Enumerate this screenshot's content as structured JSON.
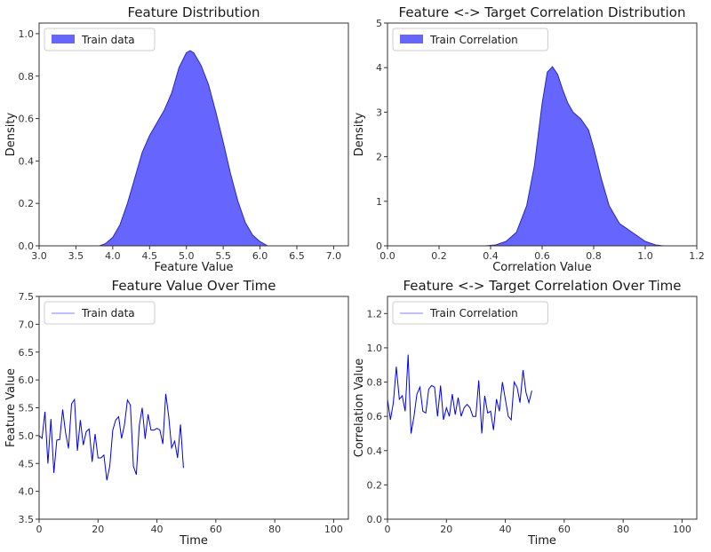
{
  "chart_data": [
    {
      "type": "area",
      "title": "Feature Distribution",
      "xlabel": "Feature Value",
      "ylabel": "Density",
      "xlim": [
        3.0,
        7.2
      ],
      "ylim": [
        0,
        1.05
      ],
      "xticks": [
        "3.0",
        "3.5",
        "4.0",
        "4.5",
        "5.0",
        "5.5",
        "6.0",
        "6.5",
        "7.0"
      ],
      "yticks": [
        "0.0",
        "0.2",
        "0.4",
        "0.6",
        "0.8",
        "1.0"
      ],
      "legend": "top-left",
      "color": "#6666ff",
      "series": [
        {
          "name": "Train data",
          "x": [
            3.82,
            3.9,
            4.0,
            4.1,
            4.2,
            4.3,
            4.4,
            4.5,
            4.6,
            4.7,
            4.8,
            4.9,
            5.0,
            5.05,
            5.1,
            5.2,
            5.3,
            5.4,
            5.5,
            5.6,
            5.7,
            5.8,
            5.9,
            6.0,
            6.1
          ],
          "y": [
            0.0,
            0.01,
            0.04,
            0.1,
            0.2,
            0.32,
            0.44,
            0.52,
            0.58,
            0.64,
            0.72,
            0.84,
            0.91,
            0.92,
            0.91,
            0.85,
            0.76,
            0.63,
            0.49,
            0.34,
            0.21,
            0.11,
            0.05,
            0.02,
            0.0
          ]
        }
      ]
    },
    {
      "type": "area",
      "title": "Feature <-> Target Correlation Distribution",
      "xlabel": "Correlation Value",
      "ylabel": "Density",
      "xlim": [
        0.0,
        1.2
      ],
      "ylim": [
        0,
        5
      ],
      "xticks": [
        "0.0",
        "0.2",
        "0.4",
        "0.6",
        "0.8",
        "1.0",
        "1.2"
      ],
      "yticks": [
        "0",
        "1",
        "2",
        "3",
        "4",
        "5"
      ],
      "legend": "top-left",
      "color": "#6666ff",
      "series": [
        {
          "name": "Train Correlation",
          "x": [
            0.38,
            0.42,
            0.46,
            0.5,
            0.54,
            0.57,
            0.6,
            0.62,
            0.64,
            0.66,
            0.68,
            0.7,
            0.72,
            0.75,
            0.78,
            0.8,
            0.83,
            0.86,
            0.9,
            0.95,
            1.0,
            1.04,
            1.07
          ],
          "y": [
            0.0,
            0.02,
            0.1,
            0.3,
            0.9,
            1.8,
            3.2,
            3.9,
            4.02,
            3.85,
            3.5,
            3.2,
            3.0,
            2.85,
            2.6,
            2.2,
            1.5,
            0.9,
            0.5,
            0.3,
            0.1,
            0.02,
            0.0
          ]
        }
      ]
    },
    {
      "type": "line",
      "title": "Feature Value Over Time",
      "xlabel": "Time",
      "ylabel": "Feature Value",
      "xlim": [
        0,
        105
      ],
      "ylim": [
        3.5,
        7.5
      ],
      "xticks": [
        "0",
        "20",
        "40",
        "60",
        "80",
        "100"
      ],
      "yticks": [
        "3.5",
        "4.0",
        "4.5",
        "5.0",
        "5.5",
        "6.0",
        "6.5",
        "7.0",
        "7.5"
      ],
      "legend": "top-left",
      "color": "#0000ee",
      "series": [
        {
          "name": "Train data",
          "x": [
            0,
            1,
            2,
            3,
            4,
            5,
            6,
            7,
            8,
            9,
            10,
            11,
            12,
            13,
            14,
            15,
            16,
            17,
            18,
            19,
            20,
            21,
            22,
            23,
            24,
            25,
            26,
            27,
            28,
            29,
            30,
            31,
            32,
            33,
            34,
            35,
            36,
            37,
            38,
            39,
            40,
            41,
            42,
            43,
            44,
            45,
            46,
            47,
            48,
            49
          ],
          "y": [
            5.0,
            4.95,
            5.43,
            4.5,
            5.3,
            4.33,
            4.92,
            4.93,
            5.47,
            5.05,
            4.77,
            5.57,
            5.65,
            4.73,
            5.28,
            4.83,
            5.07,
            5.12,
            4.53,
            5.03,
            4.6,
            4.6,
            4.65,
            4.2,
            4.45,
            5.1,
            5.28,
            5.34,
            4.95,
            5.2,
            5.64,
            5.55,
            4.45,
            4.3,
            5.18,
            5.5,
            4.94,
            5.38,
            5.1,
            5.1,
            5.13,
            5.1,
            4.85,
            5.75,
            5.35,
            4.78,
            4.9,
            4.6,
            5.2,
            4.42
          ]
        }
      ]
    },
    {
      "type": "line",
      "title": "Feature <-> Target Correlation Over Time",
      "xlabel": "Time",
      "ylabel": "Correlation Value",
      "xlim": [
        0,
        105
      ],
      "ylim": [
        0.0,
        1.3
      ],
      "xticks": [
        "0",
        "20",
        "40",
        "60",
        "80",
        "100"
      ],
      "yticks": [
        "0.0",
        "0.2",
        "0.4",
        "0.6",
        "0.8",
        "1.0",
        "1.2"
      ],
      "legend": "top-left",
      "color": "#0000ee",
      "series": [
        {
          "name": "Train Correlation",
          "x": [
            0,
            1,
            2,
            3,
            4,
            5,
            6,
            7,
            8,
            9,
            10,
            11,
            12,
            13,
            14,
            15,
            16,
            17,
            18,
            19,
            20,
            21,
            22,
            23,
            24,
            25,
            26,
            27,
            28,
            29,
            30,
            31,
            32,
            33,
            34,
            35,
            36,
            37,
            38,
            39,
            40,
            41,
            42,
            43,
            44,
            45,
            46,
            47,
            48,
            49
          ],
          "y": [
            0.7,
            0.58,
            0.68,
            0.89,
            0.7,
            0.72,
            0.63,
            0.96,
            0.5,
            0.6,
            0.73,
            0.77,
            0.63,
            0.62,
            0.76,
            0.78,
            0.77,
            0.6,
            0.78,
            0.58,
            0.65,
            0.6,
            0.73,
            0.61,
            0.71,
            0.6,
            0.65,
            0.67,
            0.65,
            0.6,
            0.6,
            0.81,
            0.5,
            0.72,
            0.62,
            0.63,
            0.52,
            0.7,
            0.63,
            0.8,
            0.7,
            0.6,
            0.58,
            0.8,
            0.77,
            0.68,
            0.87,
            0.74,
            0.68,
            0.75
          ]
        }
      ]
    }
  ]
}
